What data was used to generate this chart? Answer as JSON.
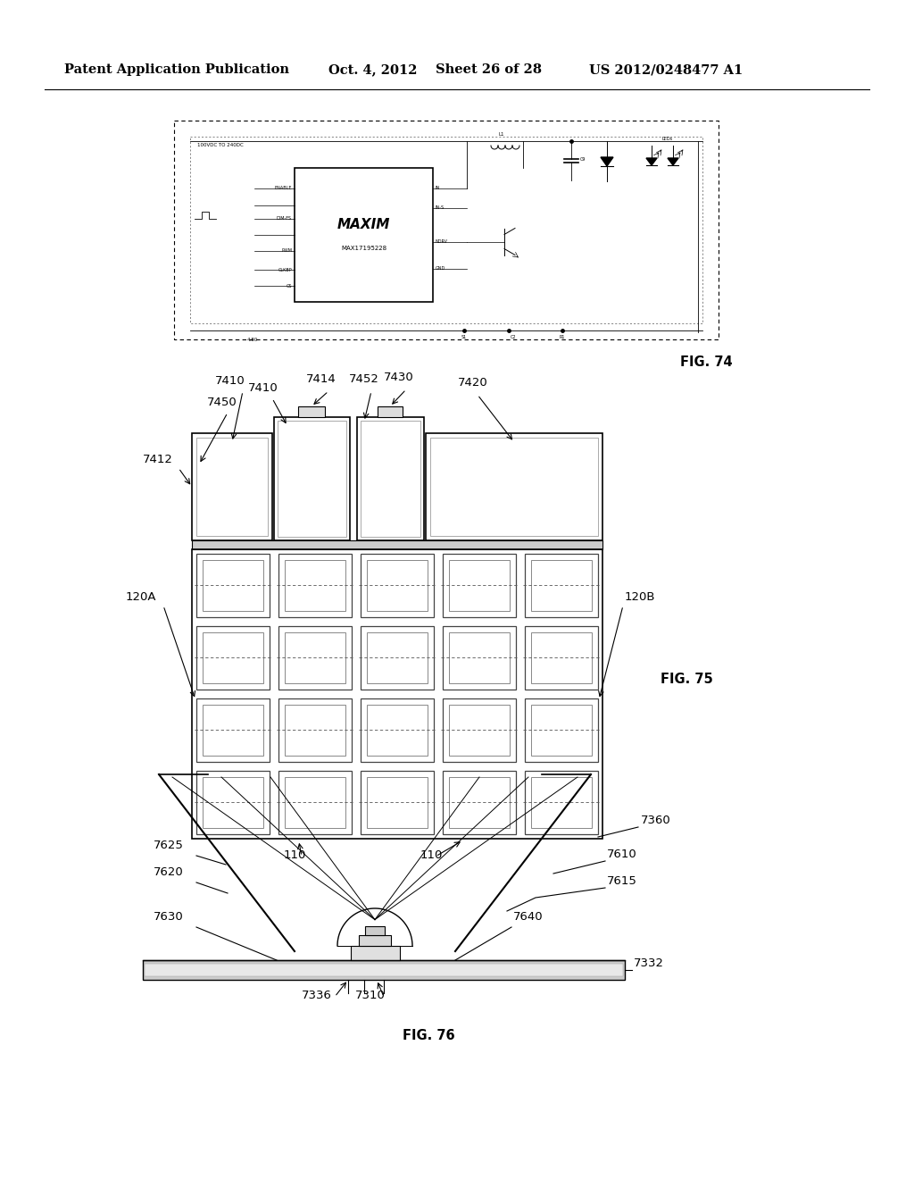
{
  "page_header": {
    "left": "Patent Application Publication",
    "center_date": "Oct. 4, 2012",
    "center_sheet": "Sheet 26 of 28",
    "right": "US 2012/0248477 A1"
  },
  "fig74_label": "FIG. 74",
  "fig75_label": "FIG. 75",
  "fig76_label": "FIG. 76",
  "background": "#ffffff",
  "line_color": "#000000"
}
